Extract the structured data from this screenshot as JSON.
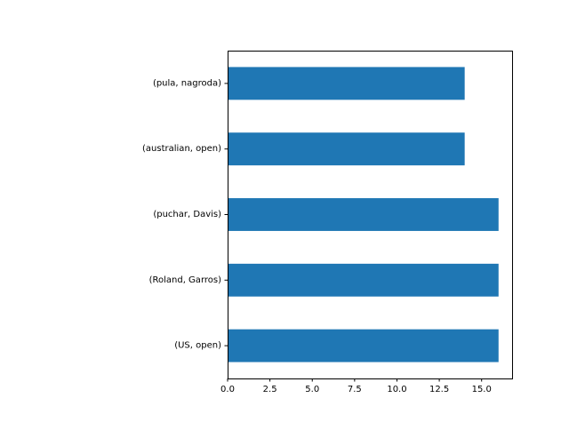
{
  "chart_data": {
    "type": "bar",
    "orientation": "horizontal",
    "categories": [
      "(US, open)",
      "(Roland, Garros)",
      "(puchar, Davis)",
      "(australian, open)",
      "(pula, nagroda)"
    ],
    "values": [
      16,
      16,
      16,
      14,
      14
    ],
    "xlim": [
      0,
      16.8
    ],
    "xticks": [
      "0.0",
      "2.5",
      "5.0",
      "7.5",
      "10.0",
      "12.5",
      "15.0"
    ],
    "xtick_values": [
      0,
      2.5,
      5,
      7.5,
      10,
      12.5,
      15
    ],
    "title": "",
    "xlabel": "",
    "ylabel": "",
    "grid": false,
    "colors": {
      "bar": "#1f77b4",
      "axis": "#000000"
    }
  }
}
